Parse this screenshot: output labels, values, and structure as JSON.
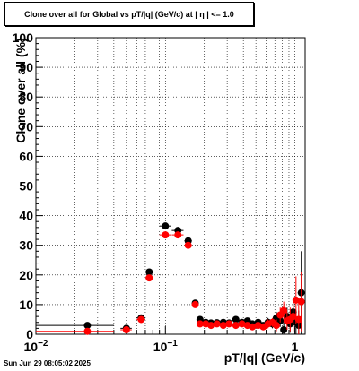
{
  "title": "Clone  over all for Global vs pT/|q| (GeV/c) at |  η  | <= 1.0",
  "timestamp": "Sun Jun 29 08:05:02 2025",
  "colors": {
    "series1": "#000000",
    "series2": "#ff0000",
    "grid": "#000000"
  },
  "chart_data": {
    "type": "scatter",
    "title": "Clone  over all for Global vs pT/|q| (GeV/c) at |  η  | <= 1.0",
    "xlabel": "pT/|q| (GeV/c)",
    "ylabel": "Clone  over all (%)",
    "xscale": "log",
    "xlim": [
      0.01,
      1.2
    ],
    "ylim": [
      0,
      100
    ],
    "grid": true,
    "x_ticklabels": [
      {
        "value": 0.01,
        "base": "10",
        "exp": "−2"
      },
      {
        "value": 0.1,
        "base": "10",
        "exp": "−1"
      },
      {
        "value": 1,
        "base": "1",
        "exp": ""
      }
    ],
    "y_ticklabels": [
      "0",
      "10",
      "20",
      "30",
      "40",
      "50",
      "60",
      "70",
      "80",
      "90",
      "100"
    ],
    "series": [
      {
        "color": "#000000",
        "points": [
          {
            "x": 0.025,
            "y": 3.0,
            "xlo": 0.01,
            "xhi": 0.04,
            "err": 0
          },
          {
            "x": 0.05,
            "y": 2.0,
            "xlo": 0.045,
            "xhi": 0.055,
            "err": 0
          },
          {
            "x": 0.065,
            "y": 5.5,
            "xlo": 0.06,
            "xhi": 0.07,
            "err": 0
          },
          {
            "x": 0.075,
            "y": 21.0,
            "xlo": 0.07,
            "xhi": 0.08,
            "err": 0
          },
          {
            "x": 0.1,
            "y": 36.5,
            "xlo": 0.09,
            "xhi": 0.11,
            "err": 0
          },
          {
            "x": 0.125,
            "y": 35.0,
            "xlo": 0.112,
            "xhi": 0.138,
            "err": 0
          },
          {
            "x": 0.15,
            "y": 31.5,
            "xlo": 0.14,
            "xhi": 0.16,
            "err": 0
          },
          {
            "x": 0.17,
            "y": 10.5,
            "xlo": 0.163,
            "xhi": 0.177,
            "err": 0
          },
          {
            "x": 0.185,
            "y": 5.0,
            "xlo": 0.18,
            "xhi": 0.19,
            "err": 0
          },
          {
            "x": 0.205,
            "y": 4.0,
            "xlo": 0.198,
            "xhi": 0.212,
            "err": 0
          },
          {
            "x": 0.225,
            "y": 3.8,
            "xlo": 0.218,
            "xhi": 0.232,
            "err": 0
          },
          {
            "x": 0.25,
            "y": 3.9,
            "xlo": 0.243,
            "xhi": 0.257,
            "err": 0
          },
          {
            "x": 0.28,
            "y": 4.0,
            "xlo": 0.272,
            "xhi": 0.288,
            "err": 0
          },
          {
            "x": 0.31,
            "y": 3.8,
            "xlo": 0.302,
            "xhi": 0.318,
            "err": 0
          },
          {
            "x": 0.35,
            "y": 5.0,
            "xlo": 0.34,
            "xhi": 0.36,
            "err": 0
          },
          {
            "x": 0.39,
            "y": 4.0,
            "xlo": 0.38,
            "xhi": 0.4,
            "err": 0
          },
          {
            "x": 0.43,
            "y": 4.5,
            "xlo": 0.42,
            "xhi": 0.44,
            "err": 0
          },
          {
            "x": 0.47,
            "y": 3.5,
            "xlo": 0.46,
            "xhi": 0.48,
            "err": 0
          },
          {
            "x": 0.52,
            "y": 4.0,
            "xlo": 0.51,
            "xhi": 0.53,
            "err": 1.0
          },
          {
            "x": 0.57,
            "y": 3.0,
            "xlo": 0.56,
            "xhi": 0.58,
            "err": 1.0
          },
          {
            "x": 0.62,
            "y": 4.0,
            "xlo": 0.61,
            "xhi": 0.63,
            "err": 1.5
          },
          {
            "x": 0.67,
            "y": 3.5,
            "xlo": 0.66,
            "xhi": 0.68,
            "err": 1.5
          },
          {
            "x": 0.72,
            "y": 5.5,
            "xlo": 0.71,
            "xhi": 0.73,
            "err": 2.0
          },
          {
            "x": 0.77,
            "y": 4.5,
            "xlo": 0.76,
            "xhi": 0.78,
            "err": 2.0
          },
          {
            "x": 0.82,
            "y": 1.5,
            "xlo": 0.81,
            "xhi": 0.83,
            "err": 2.5
          },
          {
            "x": 0.87,
            "y": 6.0,
            "xlo": 0.86,
            "xhi": 0.88,
            "err": 3.0
          },
          {
            "x": 0.92,
            "y": 3.5,
            "xlo": 0.91,
            "xhi": 0.93,
            "err": 3.0
          },
          {
            "x": 0.97,
            "y": 7.5,
            "xlo": 0.96,
            "xhi": 0.98,
            "err": 5.0
          },
          {
            "x": 1.02,
            "y": 4.0,
            "xlo": 1.01,
            "xhi": 1.03,
            "err": 4.0
          },
          {
            "x": 1.07,
            "y": 3.0,
            "xlo": 1.06,
            "xhi": 1.08,
            "err": 5.0
          },
          {
            "x": 1.12,
            "y": 14.0,
            "xlo": 1.11,
            "xhi": 1.13,
            "err": 14.0
          }
        ]
      },
      {
        "color": "#ff0000",
        "points": [
          {
            "x": 0.025,
            "y": 1.0,
            "xlo": 0.01,
            "xhi": 0.04,
            "err": 0
          },
          {
            "x": 0.05,
            "y": 1.5,
            "xlo": 0.045,
            "xhi": 0.055,
            "err": 0
          },
          {
            "x": 0.065,
            "y": 5.0,
            "xlo": 0.06,
            "xhi": 0.07,
            "err": 0
          },
          {
            "x": 0.075,
            "y": 19.0,
            "xlo": 0.07,
            "xhi": 0.08,
            "err": 0
          },
          {
            "x": 0.1,
            "y": 33.5,
            "xlo": 0.09,
            "xhi": 0.11,
            "err": 0
          },
          {
            "x": 0.125,
            "y": 33.5,
            "xlo": 0.112,
            "xhi": 0.138,
            "err": 0
          },
          {
            "x": 0.15,
            "y": 30.0,
            "xlo": 0.14,
            "xhi": 0.16,
            "err": 0
          },
          {
            "x": 0.17,
            "y": 10.0,
            "xlo": 0.163,
            "xhi": 0.177,
            "err": 0
          },
          {
            "x": 0.185,
            "y": 3.5,
            "xlo": 0.18,
            "xhi": 0.19,
            "err": 0
          },
          {
            "x": 0.205,
            "y": 3.5,
            "xlo": 0.198,
            "xhi": 0.212,
            "err": 0
          },
          {
            "x": 0.225,
            "y": 3.0,
            "xlo": 0.218,
            "xhi": 0.232,
            "err": 0
          },
          {
            "x": 0.25,
            "y": 3.5,
            "xlo": 0.243,
            "xhi": 0.257,
            "err": 0
          },
          {
            "x": 0.28,
            "y": 3.0,
            "xlo": 0.272,
            "xhi": 0.288,
            "err": 0
          },
          {
            "x": 0.31,
            "y": 3.5,
            "xlo": 0.302,
            "xhi": 0.318,
            "err": 0
          },
          {
            "x": 0.35,
            "y": 3.0,
            "xlo": 0.34,
            "xhi": 0.36,
            "err": 0
          },
          {
            "x": 0.39,
            "y": 3.5,
            "xlo": 0.38,
            "xhi": 0.4,
            "err": 0
          },
          {
            "x": 0.43,
            "y": 3.0,
            "xlo": 0.42,
            "xhi": 0.44,
            "err": 0
          },
          {
            "x": 0.47,
            "y": 2.5,
            "xlo": 0.46,
            "xhi": 0.48,
            "err": 1.0
          },
          {
            "x": 0.52,
            "y": 3.0,
            "xlo": 0.51,
            "xhi": 0.53,
            "err": 1.0
          },
          {
            "x": 0.57,
            "y": 2.5,
            "xlo": 0.56,
            "xhi": 0.58,
            "err": 1.0
          },
          {
            "x": 0.62,
            "y": 3.5,
            "xlo": 0.61,
            "xhi": 0.63,
            "err": 1.5
          },
          {
            "x": 0.67,
            "y": 4.0,
            "xlo": 0.66,
            "xhi": 0.68,
            "err": 1.5
          },
          {
            "x": 0.72,
            "y": 3.0,
            "xlo": 0.71,
            "xhi": 0.73,
            "err": 2.0
          },
          {
            "x": 0.77,
            "y": 6.5,
            "xlo": 0.76,
            "xhi": 0.78,
            "err": 2.5
          },
          {
            "x": 0.82,
            "y": 8.0,
            "xlo": 0.81,
            "xhi": 0.83,
            "err": 3.0
          },
          {
            "x": 0.87,
            "y": 4.5,
            "xlo": 0.86,
            "xhi": 0.88,
            "err": 3.0
          },
          {
            "x": 0.92,
            "y": 5.0,
            "xlo": 0.91,
            "xhi": 0.93,
            "err": 4.0
          },
          {
            "x": 0.97,
            "y": 6.0,
            "xlo": 0.96,
            "xhi": 0.98,
            "err": 5.0
          },
          {
            "x": 1.02,
            "y": 11.5,
            "xlo": 1.01,
            "xhi": 1.03,
            "err": 8.0
          },
          {
            "x": 1.07,
            "y": 5.0,
            "xlo": 1.06,
            "xhi": 1.08,
            "err": 6.0
          },
          {
            "x": 1.12,
            "y": 11.0,
            "xlo": 1.11,
            "xhi": 1.13,
            "err": 10.0
          }
        ]
      }
    ]
  }
}
